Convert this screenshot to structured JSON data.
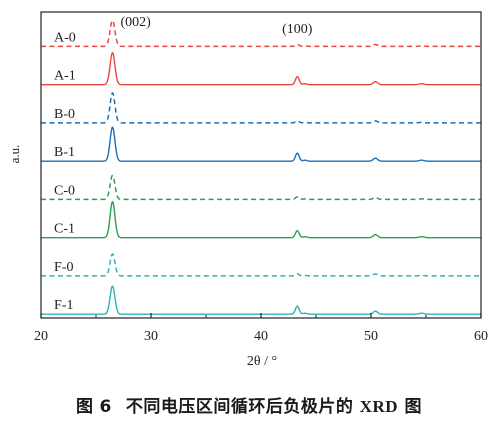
{
  "chart_data": {
    "type": "line",
    "xlabel": "2θ / °",
    "ylabel": "a.u.",
    "xlim": [
      20,
      60
    ],
    "x_ticks": [
      20,
      30,
      40,
      50,
      60
    ],
    "peak_labels": [
      {
        "text": "(002)",
        "x": 26.5
      },
      {
        "text": "(100)",
        "x": 43.3
      }
    ],
    "peaks": [
      {
        "x": 26.5,
        "sigma": 0.22
      },
      {
        "x": 43.3,
        "sigma": 0.17
      },
      {
        "x": 44.0,
        "sigma": 0.17
      },
      {
        "x": 50.4,
        "sigma": 0.2
      },
      {
        "x": 54.6,
        "sigma": 0.22
      }
    ],
    "series": [
      {
        "name": "A-0",
        "color": "#e8493f",
        "style": "dashed",
        "peak_heights": [
          26,
          2.0,
          0.5,
          2.0,
          0.6
        ]
      },
      {
        "name": "A-1",
        "color": "#e8493f",
        "style": "solid",
        "peak_heights": [
          32,
          8,
          1.0,
          3.0,
          1.0
        ]
      },
      {
        "name": "B-0",
        "color": "#1f6fb6",
        "style": "dashed",
        "peak_heights": [
          30,
          2.0,
          0.5,
          2.0,
          0.6
        ]
      },
      {
        "name": "B-1",
        "color": "#1f6fb6",
        "style": "solid",
        "peak_heights": [
          34,
          8,
          1.0,
          3.0,
          1.0
        ]
      },
      {
        "name": "C-0",
        "color": "#2e9e55",
        "style": "dashed",
        "peak_heights": [
          24,
          2.5,
          0.5,
          2.0,
          0.6
        ]
      },
      {
        "name": "C-1",
        "color": "#2e9e55",
        "style": "solid",
        "peak_heights": [
          36,
          7,
          1.0,
          3.0,
          1.0
        ]
      },
      {
        "name": "F-0",
        "color": "#2fb3b3",
        "style": "dashed",
        "peak_heights": [
          22,
          2.0,
          0.5,
          2.0,
          0.6
        ]
      },
      {
        "name": "F-1",
        "color": "#2fb3b3",
        "style": "solid",
        "peak_heights": [
          28,
          8,
          1.0,
          3.0,
          1.0
        ]
      }
    ]
  },
  "caption": {
    "prefix": "图",
    "number": "6",
    "text_before": "不同电压区间循环后负极片的",
    "latin": "XRD",
    "text_after": "图"
  }
}
